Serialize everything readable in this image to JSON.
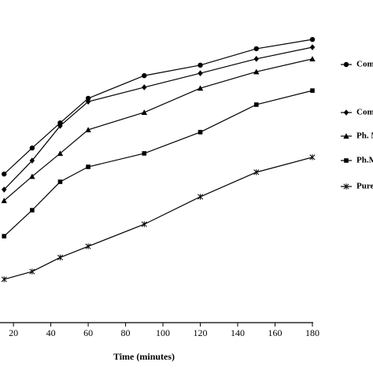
{
  "chart_data": {
    "type": "line",
    "x_label": "Time (minutes)",
    "x": [
      15,
      30,
      45,
      60,
      90,
      120,
      150,
      180
    ],
    "xlim": [
      12.8,
      180
    ],
    "xticks": [
      20,
      40,
      60,
      80,
      100,
      120,
      140,
      160,
      180
    ],
    "ylim": [
      0,
      100
    ],
    "series": [
      {
        "name": "Com",
        "color": "#000000",
        "marker": "circle",
        "values": [
          49.7,
          58.4,
          66.8,
          75.0,
          82.6,
          86.1,
          91.6,
          94.7
        ]
      },
      {
        "name": "Com",
        "color": "#000000",
        "marker": "diamond",
        "values": [
          44.5,
          54.2,
          65.8,
          73.9,
          78.7,
          83.4,
          88.2,
          92.1
        ]
      },
      {
        "name": "Ph. M",
        "color": "#000000",
        "marker": "triangle",
        "values": [
          40.8,
          48.9,
          56.6,
          64.5,
          70.3,
          78.4,
          83.9,
          88.2
        ]
      },
      {
        "name": "Ph.M",
        "color": "#000000",
        "marker": "square",
        "values": [
          28.9,
          37.6,
          47.1,
          52.1,
          56.6,
          63.7,
          72.9,
          77.6
        ]
      },
      {
        "name": "Pure",
        "color": "#000000",
        "marker": "asterisk",
        "values": [
          14.5,
          17.1,
          21.8,
          25.5,
          32.9,
          42.1,
          50.3,
          55.3
        ]
      }
    ]
  }
}
